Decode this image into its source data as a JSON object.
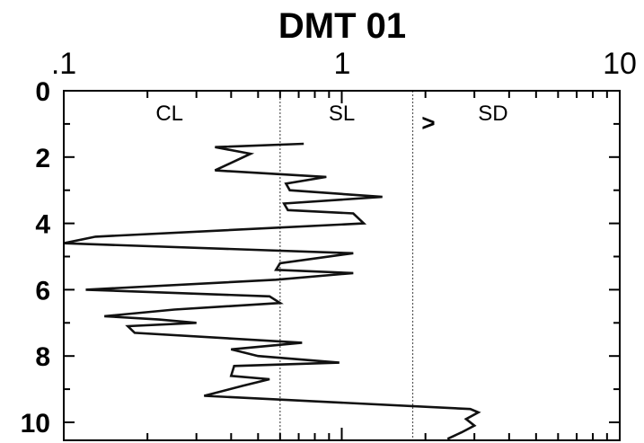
{
  "chart_data": {
    "type": "line",
    "title": "DMT 01",
    "xlabel": "",
    "ylabel": "",
    "x_scale": "log",
    "xlim": [
      0.1,
      10
    ],
    "ylim": [
      0,
      10.5
    ],
    "y_inverted": true,
    "grid": false,
    "x_tick_labels": [
      ".1",
      "1",
      "10"
    ],
    "y_tick_labels": [
      "0",
      "2",
      "4",
      "6",
      "8",
      "10"
    ],
    "y_ticks": [
      0,
      2,
      4,
      6,
      8,
      10
    ],
    "zone_boundaries": [
      0.6,
      1.8
    ],
    "zones": [
      {
        "label": "CL",
        "x": 0.24,
        "y": 0.9
      },
      {
        "label": "SL",
        "x": 1.0,
        "y": 0.9
      },
      {
        "label": "SD",
        "x": 3.5,
        "y": 0.9
      }
    ],
    "marker": {
      "text": ">",
      "x": 2.05,
      "y": 1.2
    },
    "series": [
      {
        "points": [
          [
            0.73,
            1.6
          ],
          [
            0.35,
            1.7
          ],
          [
            0.47,
            1.9
          ],
          [
            0.35,
            2.4
          ],
          [
            0.88,
            2.6
          ],
          [
            0.63,
            2.8
          ],
          [
            0.65,
            3.0
          ],
          [
            1.4,
            3.2
          ],
          [
            0.62,
            3.4
          ],
          [
            0.64,
            3.6
          ],
          [
            1.1,
            3.7
          ],
          [
            1.2,
            4.0
          ],
          [
            0.13,
            4.4
          ],
          [
            0.1,
            4.6
          ],
          [
            1.1,
            4.9
          ],
          [
            0.6,
            5.2
          ],
          [
            0.58,
            5.4
          ],
          [
            1.1,
            5.5
          ],
          [
            0.58,
            5.7
          ],
          [
            0.12,
            6.0
          ],
          [
            0.55,
            6.2
          ],
          [
            0.6,
            6.4
          ],
          [
            0.25,
            6.6
          ],
          [
            0.14,
            6.8
          ],
          [
            0.22,
            6.9
          ],
          [
            0.3,
            7.0
          ],
          [
            0.17,
            7.1
          ],
          [
            0.18,
            7.3
          ],
          [
            0.72,
            7.6
          ],
          [
            0.4,
            7.8
          ],
          [
            0.5,
            8.0
          ],
          [
            0.98,
            8.2
          ],
          [
            0.41,
            8.3
          ],
          [
            0.4,
            8.6
          ],
          [
            0.55,
            8.7
          ],
          [
            0.44,
            8.9
          ],
          [
            0.32,
            9.2
          ],
          [
            2.9,
            9.6
          ],
          [
            3.1,
            9.7
          ],
          [
            2.8,
            9.9
          ],
          [
            3.0,
            10.1
          ],
          [
            2.7,
            10.3
          ],
          [
            2.4,
            10.5
          ]
        ]
      }
    ]
  }
}
